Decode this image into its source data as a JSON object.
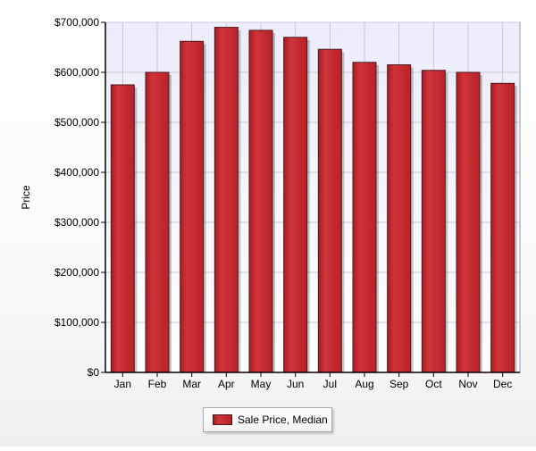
{
  "chart_data": {
    "type": "bar",
    "title": "",
    "xlabel": "",
    "ylabel": "Price",
    "ylim": [
      0,
      700000
    ],
    "yticks": [
      "$0",
      "$100,000",
      "$200,000",
      "$300,000",
      "$400,000",
      "$500,000",
      "$600,000",
      "$700,000"
    ],
    "categories": [
      "Jan",
      "Feb",
      "Mar",
      "Apr",
      "May",
      "Jun",
      "Jul",
      "Aug",
      "Sep",
      "Oct",
      "Nov",
      "Dec"
    ],
    "series": [
      {
        "name": "Sale Price, Median",
        "values": [
          575000,
          600000,
          662000,
          690000,
          684000,
          670000,
          646000,
          620000,
          615000,
          604000,
          600000,
          578000
        ]
      }
    ],
    "grid": true,
    "legend_position": "bottom-center"
  },
  "colors": {
    "bar_fill": "#c8282e",
    "bar_stroke": "#4a1a1a",
    "plot_bg_top": "#ececfc",
    "plot_bg_bottom": "#ffffff",
    "grid": "#c8c8d8"
  }
}
